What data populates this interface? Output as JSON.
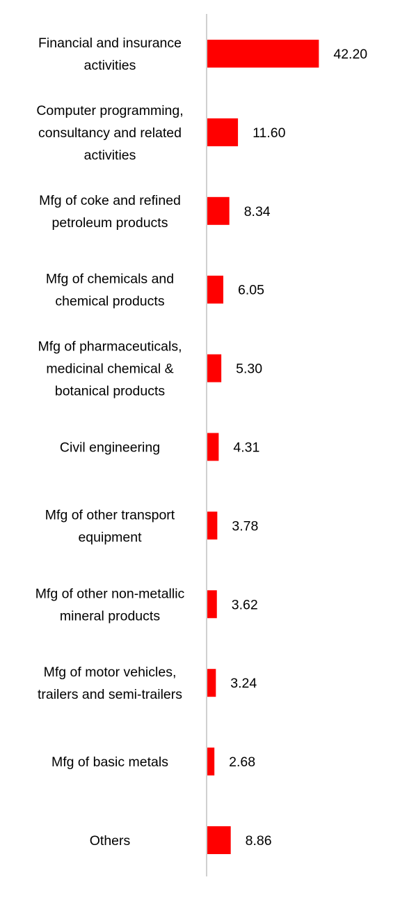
{
  "chart_data": {
    "type": "bar",
    "orientation": "horizontal",
    "categories": [
      [
        "Financial and insurance",
        "activities"
      ],
      [
        "Computer programming,",
        "consultancy and related",
        "activities"
      ],
      [
        "Mfg of coke and refined",
        "petroleum products"
      ],
      [
        "Mfg of chemicals and",
        "chemical products"
      ],
      [
        "Mfg of pharmaceuticals,",
        "medicinal chemical &",
        "botanical products"
      ],
      [
        "Civil engineering"
      ],
      [
        "Mfg of other transport",
        "equipment"
      ],
      [
        "Mfg of other non-metallic",
        "mineral products"
      ],
      [
        "Mfg of motor vehicles,",
        "trailers and semi-trailers"
      ],
      [
        "Mfg of basic metals"
      ],
      [
        "Others"
      ]
    ],
    "values": [
      42.2,
      11.6,
      8.34,
      6.05,
      5.3,
      4.31,
      3.78,
      3.62,
      3.24,
      2.68,
      8.86
    ],
    "value_labels": [
      "42.20",
      "11.60",
      "8.34",
      "6.05",
      "5.30",
      "4.31",
      "3.78",
      "3.62",
      "3.24",
      "2.68",
      "8.86"
    ],
    "title": "",
    "xlabel": "",
    "ylabel": "",
    "xlim": [
      0,
      50
    ],
    "grid": false,
    "legend": "none",
    "colors": {
      "bar": "#ff0000",
      "axis": "#d0d0d0",
      "text": "#000000"
    }
  }
}
